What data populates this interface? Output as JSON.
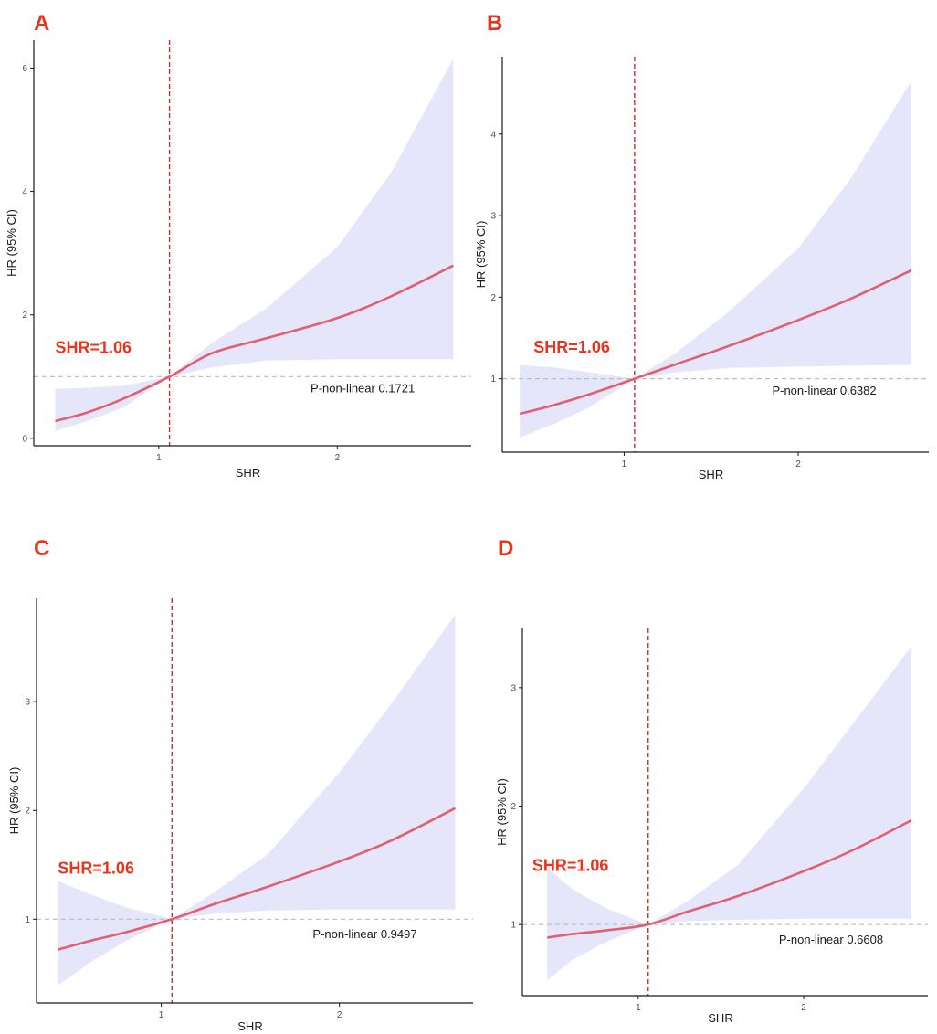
{
  "figure": {
    "colors": {
      "curve": "#e06070",
      "band": "#e6e6fb",
      "cutoff_line": "#c43030",
      "reference_line": "#bbbbbb",
      "annotation": "#e8341c",
      "axis": "#1a1a1a"
    }
  },
  "chart_data": [
    {
      "type": "line",
      "panel_label": "A",
      "xlabel": "SHR",
      "ylabel": "HR (95% CI)",
      "xlim": [
        0.3,
        2.75
      ],
      "ylim": [
        -0.12,
        6.45
      ],
      "x_ticks": [
        1,
        2
      ],
      "y_ticks": [
        0,
        2,
        4,
        6
      ],
      "cutoff_x": 1.06,
      "reference_y": 1,
      "cutoff_label": "SHR=1.06",
      "p_label": "P-non-linear 0.1721",
      "p_label_at": [
        1.85,
        0.82
      ],
      "cutoff_label_at": [
        0.42,
        1.47
      ],
      "series": [
        {
          "name": "HR",
          "x": [
            0.42,
            0.6,
            0.8,
            1.06,
            1.3,
            1.6,
            2.0,
            2.3,
            2.65
          ],
          "y": [
            0.28,
            0.42,
            0.64,
            1.0,
            1.38,
            1.62,
            1.95,
            2.3,
            2.8
          ]
        },
        {
          "name": "CI lower",
          "x": [
            0.42,
            0.6,
            0.8,
            1.06,
            1.3,
            1.6,
            2.0,
            2.3,
            2.65
          ],
          "y": [
            0.12,
            0.28,
            0.5,
            1.0,
            1.15,
            1.26,
            1.28,
            1.28,
            1.28
          ]
        },
        {
          "name": "CI upper",
          "x": [
            0.42,
            0.6,
            0.8,
            1.06,
            1.3,
            1.6,
            2.0,
            2.3,
            2.65
          ],
          "y": [
            0.8,
            0.82,
            0.85,
            1.0,
            1.55,
            2.1,
            3.1,
            4.3,
            6.15
          ]
        }
      ]
    },
    {
      "type": "line",
      "panel_label": "B",
      "xlabel": "SHR",
      "ylabel": "HR (95% CI)",
      "xlim": [
        0.3,
        2.75
      ],
      "ylim": [
        0.1,
        4.95
      ],
      "x_ticks": [
        1,
        2
      ],
      "y_ticks": [
        1,
        2,
        3,
        4
      ],
      "cutoff_x": 1.06,
      "reference_y": 1,
      "cutoff_label": "SHR=1.06",
      "p_label": "P-non-linear 0.6382",
      "p_label_at": [
        1.85,
        0.86
      ],
      "cutoff_label_at": [
        0.48,
        1.39
      ],
      "series": [
        {
          "name": "HR",
          "x": [
            0.4,
            0.6,
            0.8,
            1.06,
            1.3,
            1.6,
            2.0,
            2.3,
            2.65
          ],
          "y": [
            0.57,
            0.68,
            0.81,
            1.0,
            1.18,
            1.4,
            1.72,
            1.98,
            2.33
          ]
        },
        {
          "name": "CI lower",
          "x": [
            0.4,
            0.6,
            0.8,
            1.06,
            1.3,
            1.6,
            2.0,
            2.3,
            2.65
          ],
          "y": [
            0.28,
            0.45,
            0.65,
            1.0,
            1.08,
            1.13,
            1.15,
            1.16,
            1.17
          ]
        },
        {
          "name": "CI upper",
          "x": [
            0.4,
            0.6,
            0.8,
            1.06,
            1.3,
            1.6,
            2.0,
            2.3,
            2.65
          ],
          "y": [
            1.17,
            1.14,
            1.08,
            1.0,
            1.32,
            1.82,
            2.6,
            3.45,
            4.65
          ]
        }
      ]
    },
    {
      "type": "line",
      "panel_label": "C",
      "xlabel": "SHR",
      "ylabel": "HR (95% CI)",
      "xlim": [
        0.3,
        2.75
      ],
      "ylim": [
        0.23,
        3.95
      ],
      "x_ticks": [
        1,
        2
      ],
      "y_ticks": [
        1,
        2,
        3
      ],
      "cutoff_x": 1.06,
      "reference_y": 1,
      "cutoff_label": "SHR=1.06",
      "p_label": "P-non-linear 0.9497",
      "p_label_at": [
        1.85,
        0.87
      ],
      "cutoff_label_at": [
        0.42,
        1.47
      ],
      "series": [
        {
          "name": "HR",
          "x": [
            0.42,
            0.6,
            0.8,
            1.06,
            1.3,
            1.6,
            2.0,
            2.3,
            2.65
          ],
          "y": [
            0.72,
            0.8,
            0.88,
            1.0,
            1.14,
            1.3,
            1.53,
            1.73,
            2.02
          ]
        },
        {
          "name": "CI lower",
          "x": [
            0.42,
            0.6,
            0.8,
            1.06,
            1.3,
            1.6,
            2.0,
            2.3,
            2.65
          ],
          "y": [
            0.39,
            0.6,
            0.8,
            1.0,
            1.05,
            1.08,
            1.09,
            1.09,
            1.09
          ]
        },
        {
          "name": "CI upper",
          "x": [
            0.42,
            0.6,
            0.8,
            1.06,
            1.3,
            1.6,
            2.0,
            2.3,
            2.65
          ],
          "y": [
            1.35,
            1.23,
            1.11,
            1.0,
            1.25,
            1.6,
            2.35,
            3.0,
            3.8
          ]
        }
      ]
    },
    {
      "type": "line",
      "panel_label": "D",
      "xlabel": "SHR",
      "ylabel": "HR (95% CI)",
      "xlim": [
        0.3,
        2.75
      ],
      "ylim": [
        0.4,
        3.5
      ],
      "x_ticks": [
        1,
        2
      ],
      "y_ticks": [
        1,
        2,
        3
      ],
      "cutoff_x": 1.06,
      "reference_y": 1,
      "cutoff_label": "SHR=1.06",
      "p_label": "P-non-linear 0.6608",
      "p_label_at": [
        1.85,
        0.88
      ],
      "cutoff_label_at": [
        0.36,
        1.5
      ],
      "series": [
        {
          "name": "HR",
          "x": [
            0.45,
            0.6,
            0.8,
            1.06,
            1.3,
            1.6,
            2.0,
            2.3,
            2.65
          ],
          "y": [
            0.89,
            0.92,
            0.95,
            1.0,
            1.11,
            1.24,
            1.45,
            1.63,
            1.88
          ]
        },
        {
          "name": "CI lower",
          "x": [
            0.45,
            0.6,
            0.8,
            1.06,
            1.3,
            1.6,
            2.0,
            2.3,
            2.65
          ],
          "y": [
            0.53,
            0.7,
            0.85,
            1.0,
            1.03,
            1.04,
            1.05,
            1.05,
            1.05
          ]
        },
        {
          "name": "CI upper",
          "x": [
            0.45,
            0.6,
            0.8,
            1.06,
            1.3,
            1.6,
            2.0,
            2.3,
            2.65
          ],
          "y": [
            1.48,
            1.3,
            1.14,
            1.0,
            1.2,
            1.5,
            2.15,
            2.7,
            3.35
          ]
        }
      ]
    }
  ]
}
